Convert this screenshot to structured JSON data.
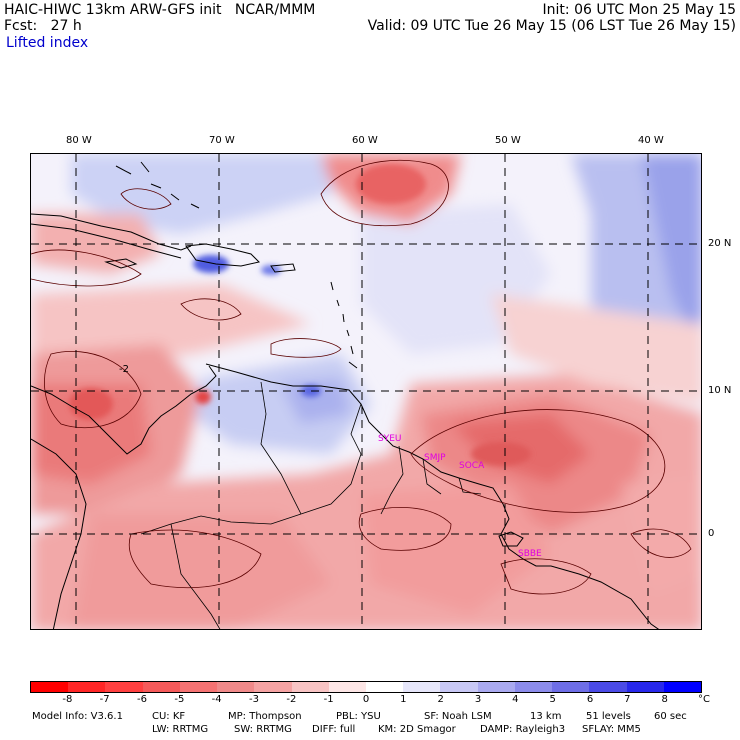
{
  "header": {
    "title": "HAIC-HIWC 13km ARW-GFS init   NCAR/MMM",
    "init": "Init: 06 UTC Mon 25 May 15",
    "fcst": "Fcst:   27 h",
    "valid": "Valid: 09 UTC Tue 26 May 15 (06 LST Tue 26 May 15)",
    "field": "Lifted index"
  },
  "map": {
    "lon_labels": [
      "80 W",
      "70 W",
      "60 W",
      "50 W",
      "40 W"
    ],
    "lat_labels": [
      "20 N",
      "10 N",
      "0"
    ],
    "contour_label": "-2",
    "stations": [
      "SYEU",
      "SMJP",
      "SOCA",
      "SBBE"
    ]
  },
  "colorbar": {
    "ticks": [
      "-8",
      "-7",
      "-6",
      "-5",
      "-4",
      "-3",
      "-2",
      "-1",
      "0",
      "1",
      "2",
      "3",
      "4",
      "5",
      "6",
      "7",
      "8"
    ],
    "unit": "°C",
    "colors": [
      "#ff0000",
      "#ff2626",
      "#ff4040",
      "#f55a5a",
      "#f57373",
      "#f08a8a",
      "#f5a3a3",
      "#f8c4c4",
      "#fde6e6",
      "#ffffff",
      "#e6e6fa",
      "#c8c8f5",
      "#aaaaf0",
      "#8c8ceb",
      "#6e6ee6",
      "#4b4be6",
      "#2828eb",
      "#0000ff"
    ]
  },
  "model_info": {
    "line1": [
      "Model Info: V3.6.1",
      "CU: KF",
      "MP: Thompson",
      "PBL: YSU",
      "SF: Noah LSM",
      "13 km",
      "51 levels",
      "60 sec"
    ],
    "line2": [
      "LW: RRTMG",
      "SW: RRTMG",
      "DIFF: full",
      "KM: 2D Smagor",
      "DAMP: Rayleigh3",
      "SFLAY: MM5"
    ]
  }
}
